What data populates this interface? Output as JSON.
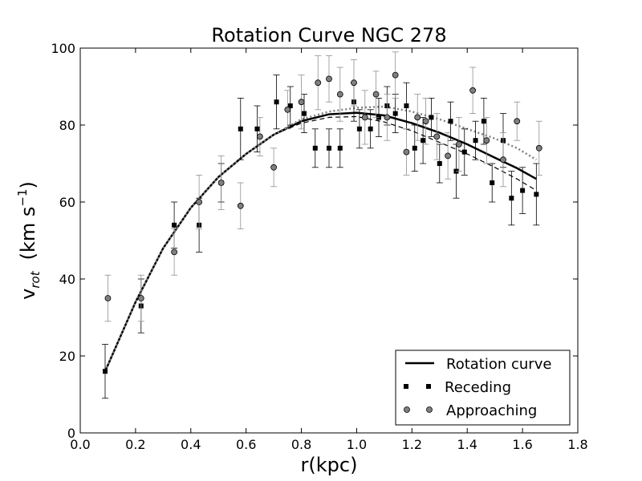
{
  "chart_data": {
    "type": "scatter",
    "title": "Rotation Curve NGC 278",
    "xlabel": "r(kpc)",
    "ylabel": {
      "main": "v",
      "subscript": "rot",
      "units_prefix": "(km s",
      "units_superscript": "−1",
      "units_suffix": ")"
    },
    "xlim": [
      0.0,
      1.8
    ],
    "ylim": [
      0,
      100
    ],
    "xticks": [
      "0.0",
      "0.2",
      "0.4",
      "0.6",
      "0.8",
      "1.0",
      "1.2",
      "1.4",
      "1.6",
      "1.8"
    ],
    "yticks": [
      "0",
      "20",
      "40",
      "60",
      "80",
      "100"
    ],
    "legend": {
      "position": "bottom-right",
      "entries": [
        "Rotation curve",
        "Receding",
        "Approaching"
      ]
    },
    "series": [
      {
        "name": "Rotation curve",
        "style": "solid",
        "color": "#000000",
        "x": [
          0.09,
          0.2,
          0.3,
          0.4,
          0.5,
          0.6,
          0.7,
          0.8,
          0.9,
          1.0,
          1.1,
          1.2,
          1.3,
          1.4,
          1.5,
          1.58,
          1.65
        ],
        "y": [
          16,
          34,
          48,
          58.5,
          66.5,
          72.5,
          77.5,
          81,
          82.8,
          83.2,
          82.5,
          80.5,
          78,
          75,
          71.5,
          68.8,
          66
        ]
      },
      {
        "name": "Receding model",
        "style": "dashed",
        "color": "#000000",
        "x": [
          0.09,
          0.2,
          0.3,
          0.4,
          0.5,
          0.6,
          0.7,
          0.8,
          0.9,
          1.0,
          1.1,
          1.2,
          1.3,
          1.4,
          1.5,
          1.58,
          1.65
        ],
        "y": [
          16,
          34,
          48,
          58.5,
          66.5,
          72.5,
          77.5,
          80.5,
          82,
          82.2,
          80.8,
          78.5,
          75.5,
          72.5,
          69,
          66,
          63
        ]
      },
      {
        "name": "Approaching model",
        "style": "dotted",
        "color": "#808080",
        "x": [
          0.09,
          0.2,
          0.3,
          0.4,
          0.5,
          0.6,
          0.7,
          0.8,
          0.9,
          1.0,
          1.1,
          1.2,
          1.3,
          1.4,
          1.5,
          1.58,
          1.65
        ],
        "y": [
          16,
          34,
          48,
          58.5,
          66.5,
          72.5,
          77.5,
          81.5,
          83.5,
          84.5,
          84.8,
          83.5,
          81.5,
          79,
          76.5,
          74,
          71
        ]
      },
      {
        "name": "Receding",
        "marker": "square",
        "color": "#000000",
        "points": [
          {
            "x": 0.09,
            "y": 16,
            "err": 7
          },
          {
            "x": 0.22,
            "y": 33,
            "err": 7
          },
          {
            "x": 0.34,
            "y": 54,
            "err": 6
          },
          {
            "x": 0.43,
            "y": 54,
            "err": 7
          },
          {
            "x": 0.51,
            "y": 65,
            "err": 5
          },
          {
            "x": 0.58,
            "y": 79,
            "err": 8
          },
          {
            "x": 0.64,
            "y": 79,
            "err": 6
          },
          {
            "x": 0.71,
            "y": 86,
            "err": 7
          },
          {
            "x": 0.76,
            "y": 85,
            "err": 5
          },
          {
            "x": 0.81,
            "y": 83,
            "err": 5
          },
          {
            "x": 0.85,
            "y": 74,
            "err": 5
          },
          {
            "x": 0.9,
            "y": 74,
            "err": 5
          },
          {
            "x": 0.94,
            "y": 74,
            "err": 5
          },
          {
            "x": 0.99,
            "y": 86,
            "err": 5
          },
          {
            "x": 1.01,
            "y": 79,
            "err": 5
          },
          {
            "x": 1.05,
            "y": 79,
            "err": 5
          },
          {
            "x": 1.08,
            "y": 82,
            "err": 5
          },
          {
            "x": 1.11,
            "y": 85,
            "err": 5
          },
          {
            "x": 1.14,
            "y": 83,
            "err": 5
          },
          {
            "x": 1.18,
            "y": 85,
            "err": 6
          },
          {
            "x": 1.21,
            "y": 74,
            "err": 6
          },
          {
            "x": 1.24,
            "y": 76,
            "err": 6
          },
          {
            "x": 1.27,
            "y": 82,
            "err": 5
          },
          {
            "x": 1.3,
            "y": 70,
            "err": 5
          },
          {
            "x": 1.34,
            "y": 81,
            "err": 5
          },
          {
            "x": 1.36,
            "y": 68,
            "err": 7
          },
          {
            "x": 1.39,
            "y": 73,
            "err": 6
          },
          {
            "x": 1.43,
            "y": 76,
            "err": 5
          },
          {
            "x": 1.46,
            "y": 81,
            "err": 6
          },
          {
            "x": 1.49,
            "y": 65,
            "err": 5
          },
          {
            "x": 1.53,
            "y": 76,
            "err": 7
          },
          {
            "x": 1.56,
            "y": 61,
            "err": 7
          },
          {
            "x": 1.6,
            "y": 63,
            "err": 6
          },
          {
            "x": 1.65,
            "y": 62,
            "err": 8
          }
        ]
      },
      {
        "name": "Approaching",
        "marker": "circle",
        "color": "#808080",
        "points": [
          {
            "x": 0.1,
            "y": 35,
            "err": 6
          },
          {
            "x": 0.22,
            "y": 35,
            "err": 6
          },
          {
            "x": 0.34,
            "y": 47,
            "err": 6
          },
          {
            "x": 0.43,
            "y": 60,
            "err": 7
          },
          {
            "x": 0.51,
            "y": 65,
            "err": 7
          },
          {
            "x": 0.58,
            "y": 59,
            "err": 6
          },
          {
            "x": 0.65,
            "y": 77,
            "err": 5
          },
          {
            "x": 0.7,
            "y": 69,
            "err": 5
          },
          {
            "x": 0.75,
            "y": 84,
            "err": 5
          },
          {
            "x": 0.8,
            "y": 86,
            "err": 7
          },
          {
            "x": 0.86,
            "y": 91,
            "err": 7
          },
          {
            "x": 0.9,
            "y": 92,
            "err": 6
          },
          {
            "x": 0.94,
            "y": 88,
            "err": 7
          },
          {
            "x": 0.99,
            "y": 91,
            "err": 6
          },
          {
            "x": 1.03,
            "y": 82,
            "err": 7
          },
          {
            "x": 1.07,
            "y": 88,
            "err": 6
          },
          {
            "x": 1.11,
            "y": 82,
            "err": 6
          },
          {
            "x": 1.14,
            "y": 93,
            "err": 6
          },
          {
            "x": 1.18,
            "y": 73,
            "err": 6
          },
          {
            "x": 1.22,
            "y": 82,
            "err": 6
          },
          {
            "x": 1.25,
            "y": 81,
            "err": 6
          },
          {
            "x": 1.29,
            "y": 77,
            "err": 6
          },
          {
            "x": 1.33,
            "y": 72,
            "err": 6
          },
          {
            "x": 1.37,
            "y": 75,
            "err": 7
          },
          {
            "x": 1.42,
            "y": 89,
            "err": 6
          },
          {
            "x": 1.47,
            "y": 76,
            "err": 6
          },
          {
            "x": 1.53,
            "y": 71,
            "err": 7
          },
          {
            "x": 1.58,
            "y": 81,
            "err": 5
          },
          {
            "x": 1.66,
            "y": 74,
            "err": 7
          }
        ]
      }
    ]
  }
}
